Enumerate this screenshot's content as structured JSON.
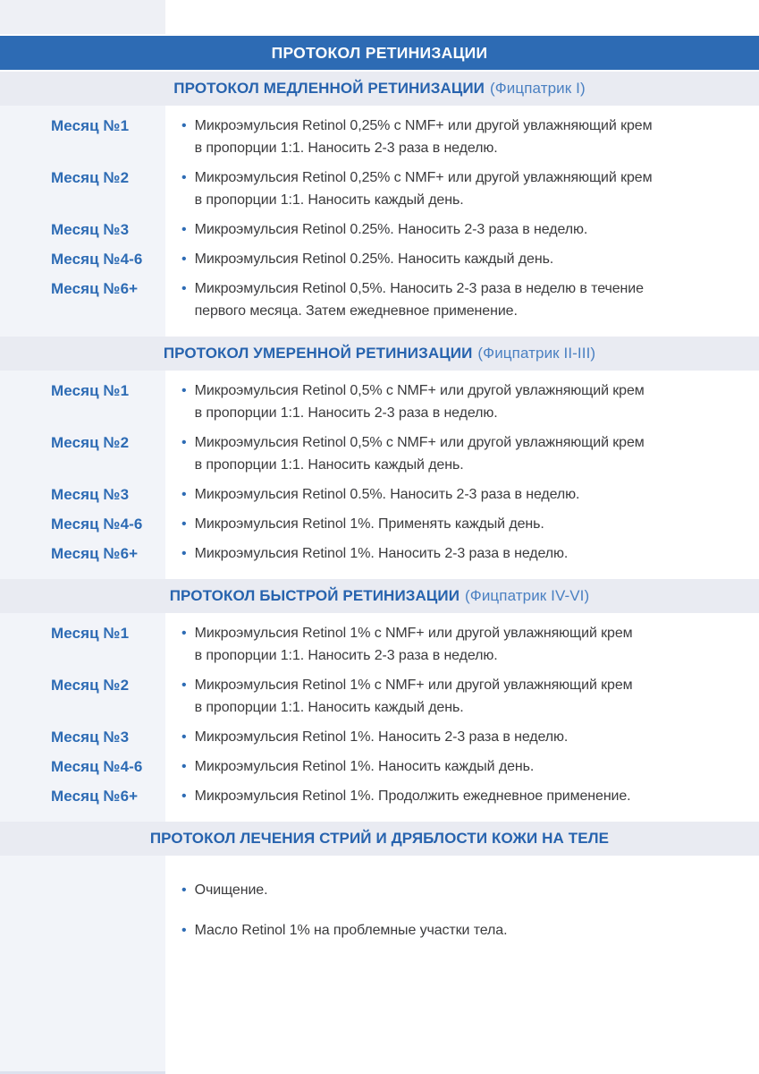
{
  "document": {
    "title": "ПРОТОКОЛ РЕТИНИЗАЦИИ"
  },
  "bullet_glyph": "•",
  "colors": {
    "page-bg": "#ffffff",
    "header-bg": "#2d6bb4",
    "strip-bg": "#e9ebf2",
    "rail-bg": "#f2f4f9",
    "rail-edge": "#dde2ee",
    "corner-bg": "#eef0f5",
    "title-blue": "#2763ae",
    "subtitle-blue": "#4a80c2",
    "label-blue": "#2d6bb4",
    "body-text": "#3b3b3d"
  },
  "sections": [
    {
      "title": "ПРОТОКОЛ МЕДЛЕННОЙ РЕТИНИЗАЦИИ",
      "subtitle": "(Фицпатрик I)",
      "rows": [
        {
          "label": "Месяц №1",
          "text": "Микроэмульсия Retinol 0,25% с NMF+ или другой увлажняющий крем\nв пропорции 1:1. Наносить 2-3 раза в неделю."
        },
        {
          "label": "Месяц №2",
          "text": "Микроэмульсия Retinol 0,25% с NMF+ или другой увлажняющий крем\nв пропорции 1:1. Наносить каждый день."
        },
        {
          "label": "Месяц №3",
          "text": "Микроэмульсия Retinol 0.25%. Наносить 2-3 раза в неделю."
        },
        {
          "label": "Месяц №4-6",
          "text": "Микроэмульсия Retinol 0.25%. Наносить каждый день."
        },
        {
          "label": "Месяц №6+",
          "text": "Микроэмульсия Retinol 0,5%. Наносить 2-3 раза в неделю в течение\nпервого месяца. Затем ежедневное применение."
        }
      ]
    },
    {
      "title": "ПРОТОКОЛ УМЕРЕННОЙ РЕТИНИЗАЦИИ",
      "subtitle": "(Фицпатрик II-III)",
      "rows": [
        {
          "label": "Месяц №1",
          "text": "Микроэмульсия Retinol 0,5% с NMF+ или другой увлажняющий крем\nв пропорции 1:1. Наносить 2-3 раза в неделю."
        },
        {
          "label": "Месяц №2",
          "text": "Микроэмульсия Retinol 0,5% с NMF+ или другой увлажняющий крем\nв пропорции 1:1. Наносить каждый день."
        },
        {
          "label": "Месяц №3",
          "text": "Микроэмульсия Retinol 0.5%. Наносить 2-3 раза в неделю."
        },
        {
          "label": "Месяц №4-6",
          "text": "Микроэмульсия Retinol 1%. Применять каждый день."
        },
        {
          "label": "Месяц №6+",
          "text": "Микроэмульсия Retinol 1%. Наносить 2-3 раза в неделю."
        }
      ]
    },
    {
      "title": "ПРОТОКОЛ БЫСТРОЙ РЕТИНИЗАЦИИ",
      "subtitle": "(Фицпатрик IV-VI)",
      "rows": [
        {
          "label": "Месяц №1",
          "text": "Микроэмульсия Retinol 1% с NMF+ или другой увлажняющий крем\nв пропорции 1:1. Наносить 2-3 раза в неделю."
        },
        {
          "label": "Месяц №2",
          "text": "Микроэмульсия Retinol 1% с NMF+ или другой увлажняющий крем\nв пропорции 1:1. Наносить каждый день."
        },
        {
          "label": "Месяц №3",
          "text": "Микроэмульсия Retinol 1%. Наносить 2-3 раза в неделю."
        },
        {
          "label": "Месяц №4-6",
          "text": "Микроэмульсия Retinol 1%. Наносить каждый день."
        },
        {
          "label": "Месяц №6+",
          "text": "Микроэмульсия Retinol 1%. Продолжить ежедневное применение."
        }
      ]
    },
    {
      "title": "ПРОТОКОЛ ЛЕЧЕНИЯ СТРИЙ И ДРЯБЛОСТИ КОЖИ НА ТЕЛЕ",
      "subtitle": "",
      "rows": [
        {
          "label": "",
          "text": "Очищение."
        },
        {
          "label": "",
          "text": "Масло Retinol 1% на проблемные участки тела."
        }
      ]
    }
  ]
}
